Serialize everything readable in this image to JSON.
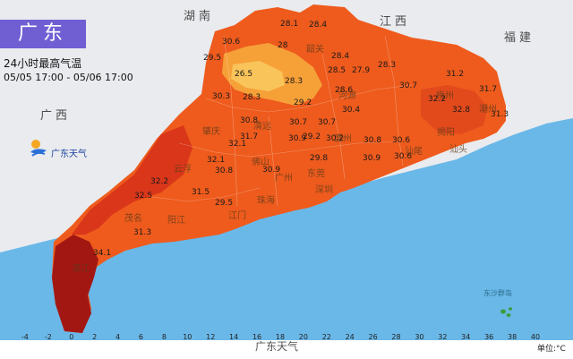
{
  "header": {
    "title": "广东",
    "subtitle": "24小时最高气温",
    "time_range": "05/05 17:00 - 05/06 17:00"
  },
  "logo": {
    "text": "广东天气"
  },
  "regions": [
    "湖南",
    "江西",
    "福建",
    "广西"
  ],
  "cities": [
    "肇庆",
    "云浮",
    "佛山",
    "广州",
    "惠州",
    "河源",
    "梅州",
    "潮州",
    "汕头",
    "揭阳",
    "汕尾",
    "深圳",
    "江门",
    "阳江",
    "茂名",
    "湛江",
    "韶关",
    "清远",
    "东莞",
    "珠海"
  ],
  "temperature_values": [
    "28.1",
    "28.4",
    "30.6",
    "28",
    "28.4",
    "29.5",
    "26.5",
    "28.3",
    "28.5",
    "27.9",
    "28.3",
    "31.2",
    "32.2",
    "30.3",
    "28.3",
    "28.6",
    "30.7",
    "31.7",
    "32.8",
    "29.2",
    "30.4",
    "31.3",
    "30.8",
    "30.7",
    "30.7",
    "32.1",
    "30.9",
    "30.2",
    "30.8",
    "29.2",
    "30.6",
    "31.7",
    "30.6",
    "29.8",
    "30.9",
    "32.1",
    "30.8",
    "30.9",
    "32.5",
    "29.5",
    "31.5",
    "32.2",
    "31.3",
    "34.1"
  ],
  "islands_label": "东沙群岛",
  "legend": {
    "ticks": [
      "-4",
      "-2",
      "0",
      "2",
      "4",
      "6",
      "8",
      "10",
      "12",
      "14",
      "16",
      "18",
      "20",
      "22",
      "24",
      "26",
      "28",
      "30",
      "32",
      "34",
      "36",
      "38",
      "40"
    ],
    "unit": "单位:°C",
    "colors": [
      "#2a2aa8",
      "#1f3fb8",
      "#2060d0",
      "#3a82e0",
      "#5aa6ea",
      "#7cc4ef",
      "#9ad8f1",
      "#b5e6ef",
      "#99dcc3",
      "#6ccf9a",
      "#3fbd6e",
      "#2aa64d",
      "#5fbf3a",
      "#a7d53a",
      "#e2e23a",
      "#f3c230",
      "#f59a26",
      "#f07522",
      "#e8501d",
      "#d7301a",
      "#b41a16",
      "#8c0f14",
      "#5e0a10"
    ]
  },
  "watermark": "广东天气",
  "colors": {
    "sea": "#6ab8e8",
    "land": "#eaeaea"
  }
}
